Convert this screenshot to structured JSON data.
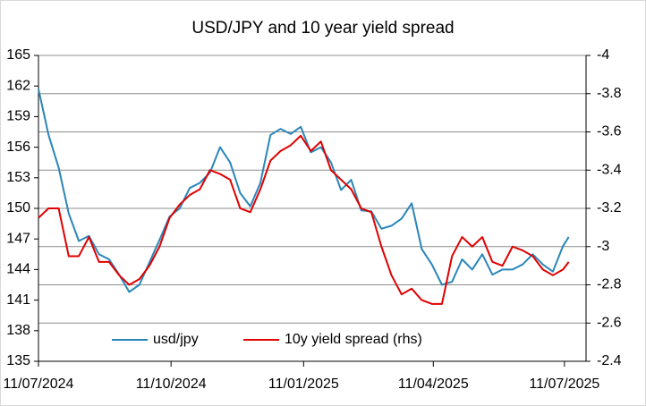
{
  "chart_data": {
    "type": "line",
    "title": "USD/JPY and 10 year yield spread",
    "x": [
      "2024-07-11",
      "2024-07-18",
      "2024-07-25",
      "2024-08-01",
      "2024-08-08",
      "2024-08-15",
      "2024-08-22",
      "2024-08-29",
      "2024-09-05",
      "2024-09-12",
      "2024-09-19",
      "2024-09-26",
      "2024-10-03",
      "2024-10-10",
      "2024-10-17",
      "2024-10-24",
      "2024-10-31",
      "2024-11-07",
      "2024-11-14",
      "2024-11-21",
      "2024-11-28",
      "2024-12-05",
      "2024-12-12",
      "2024-12-19",
      "2024-12-26",
      "2025-01-02",
      "2025-01-09",
      "2025-01-16",
      "2025-01-23",
      "2025-01-30",
      "2025-02-06",
      "2025-02-13",
      "2025-02-20",
      "2025-02-27",
      "2025-03-06",
      "2025-03-13",
      "2025-03-20",
      "2025-03-27",
      "2025-04-03",
      "2025-04-10",
      "2025-04-17",
      "2025-04-24",
      "2025-05-01",
      "2025-05-08",
      "2025-05-15",
      "2025-05-22",
      "2025-05-29",
      "2025-06-05",
      "2025-06-12",
      "2025-06-19",
      "2025-06-26",
      "2025-07-03",
      "2025-07-10",
      "2025-07-14"
    ],
    "series": [
      {
        "name": "usd/jpy",
        "color": "#2a86b8",
        "values": [
          161.7,
          157.2,
          154.0,
          149.5,
          146.8,
          147.3,
          145.5,
          145.0,
          143.5,
          141.8,
          142.5,
          144.7,
          146.9,
          149.2,
          150.0,
          152.0,
          152.5,
          153.5,
          156.0,
          154.5,
          151.5,
          150.2,
          152.5,
          157.2,
          157.8,
          157.3,
          158.0,
          155.5,
          156.0,
          154.5,
          151.8,
          152.8,
          149.8,
          149.7,
          148.0,
          148.3,
          149.0,
          150.5,
          146.0,
          144.5,
          142.5,
          142.8,
          145.0,
          144.0,
          145.5,
          143.5,
          144.0,
          144.0,
          144.5,
          145.5,
          144.5,
          143.8,
          146.3,
          147.2
        ]
      },
      {
        "name": "10y yield spread (rhs)",
        "color": "#e00000",
        "axis": "y2",
        "values": [
          -3.15,
          -3.2,
          -3.2,
          -2.95,
          -2.95,
          -3.05,
          -2.92,
          -2.92,
          -2.85,
          -2.8,
          -2.83,
          -2.9,
          -3.0,
          -3.15,
          -3.22,
          -3.27,
          -3.3,
          -3.4,
          -3.38,
          -3.35,
          -3.2,
          -3.18,
          -3.3,
          -3.45,
          -3.5,
          -3.53,
          -3.58,
          -3.5,
          -3.55,
          -3.4,
          -3.35,
          -3.3,
          -3.2,
          -3.18,
          -3.0,
          -2.85,
          -2.75,
          -2.78,
          -2.72,
          -2.7,
          -2.7,
          -2.95,
          -3.05,
          -3.0,
          -3.05,
          -2.92,
          -2.9,
          -3.0,
          -2.98,
          -2.95,
          -2.88,
          -2.85,
          -2.88,
          -2.92
        ]
      }
    ],
    "xlim": [
      "2024-07-11",
      "2025-07-26"
    ],
    "xticks": [
      {
        "value": "2024-07-11",
        "label": "11/07/2024"
      },
      {
        "value": "2024-10-11",
        "label": "11/10/2024"
      },
      {
        "value": "2025-01-11",
        "label": "11/01/2025"
      },
      {
        "value": "2025-04-11",
        "label": "11/04/2025"
      },
      {
        "value": "2025-07-11",
        "label": "11/07/2025"
      }
    ],
    "ylim": [
      135,
      165
    ],
    "yticks": [
      135,
      138,
      141,
      144,
      147,
      150,
      153,
      156,
      159,
      162,
      165
    ],
    "y2lim": [
      -2.4,
      -4
    ],
    "y2ticks": [
      -4,
      -3.8,
      -3.6,
      -3.4,
      -3.2,
      -3,
      -2.8,
      -2.6,
      -2.4
    ],
    "grid": true,
    "legend": "bottom"
  }
}
